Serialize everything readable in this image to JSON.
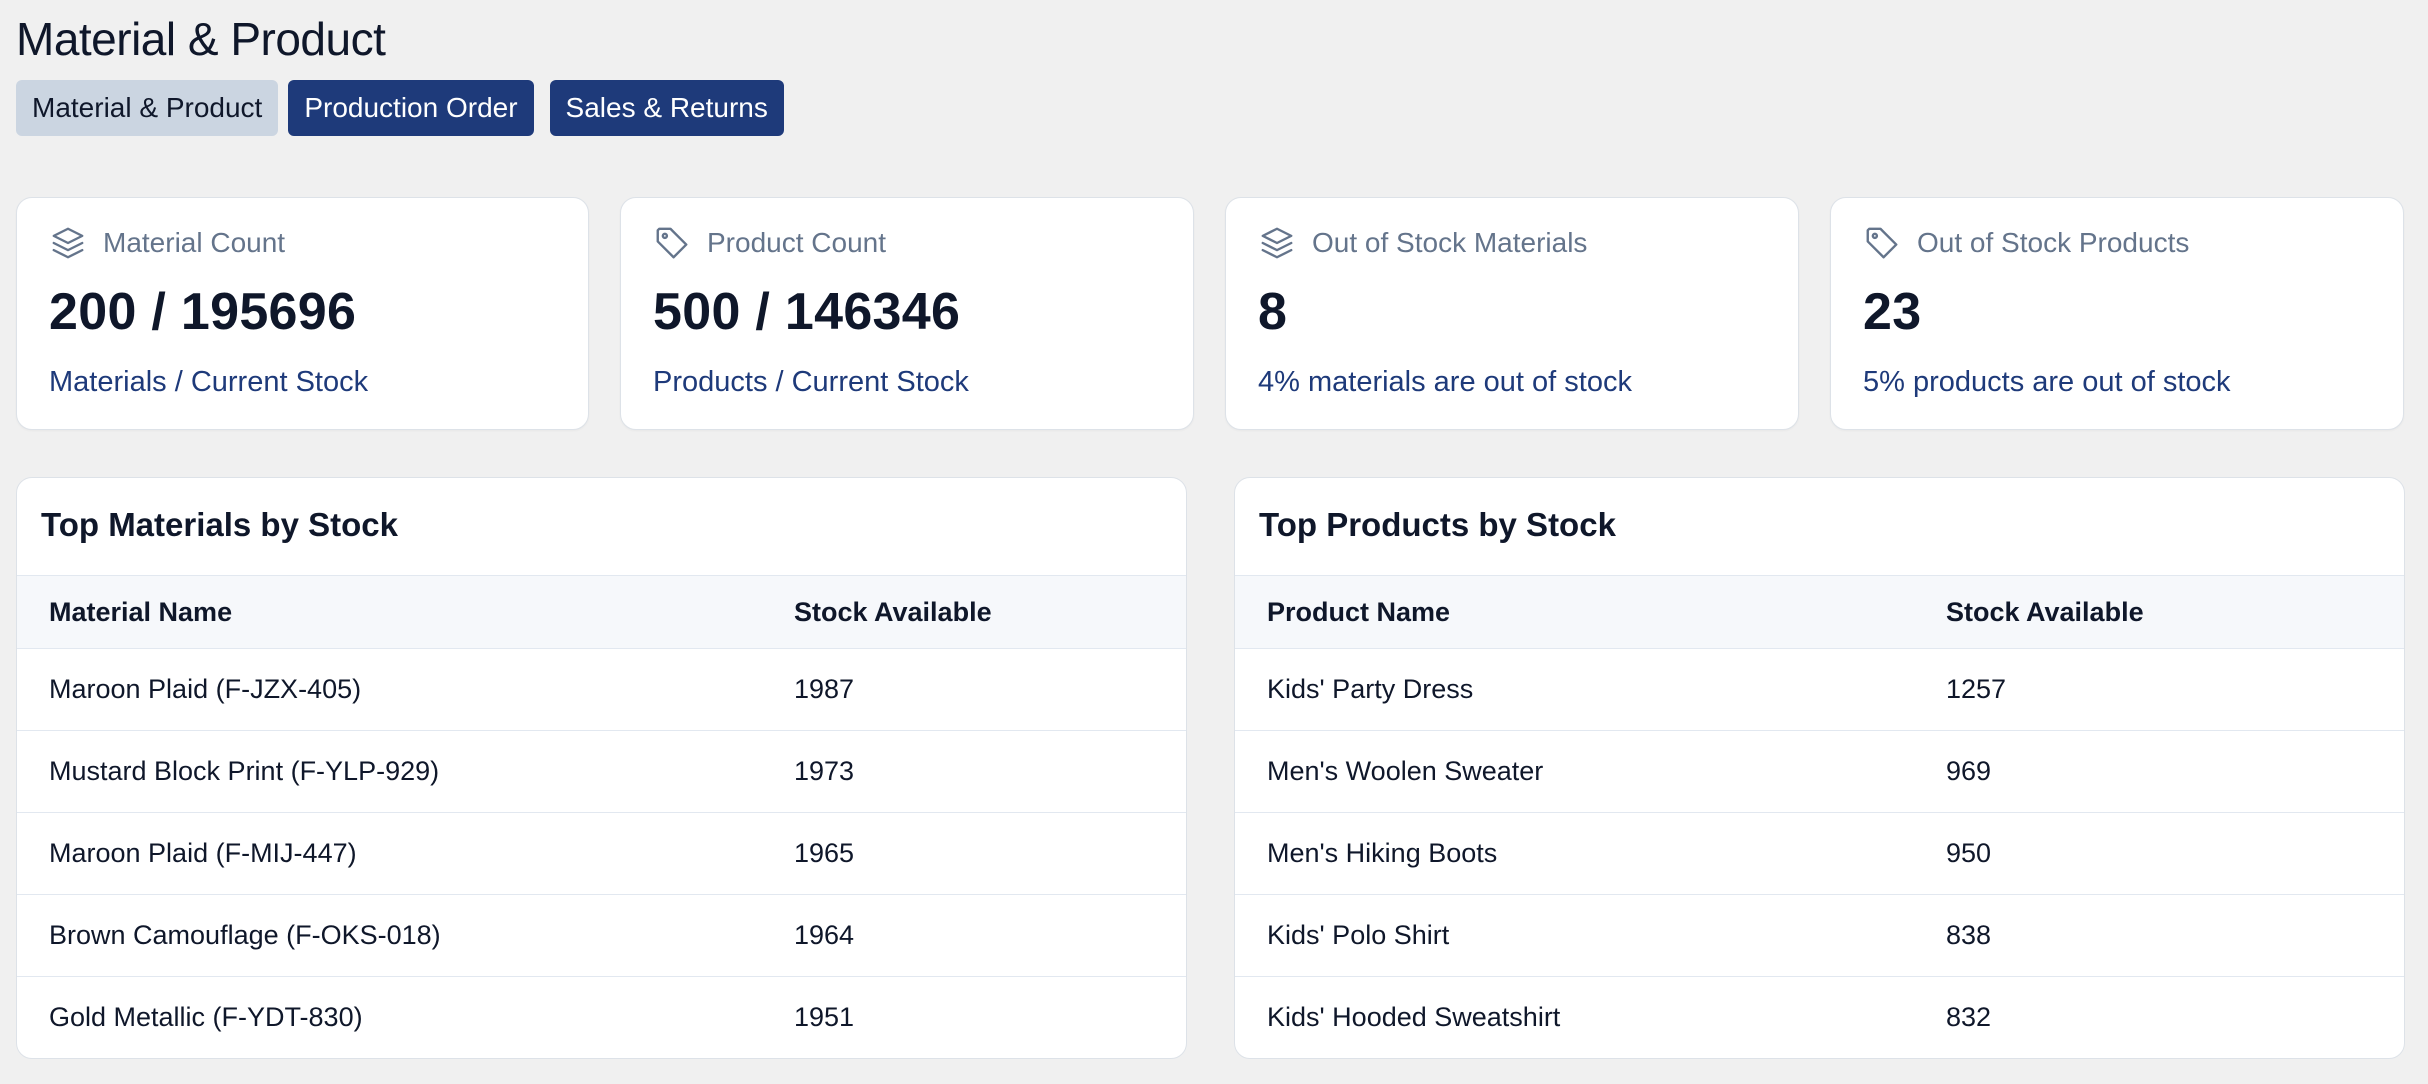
{
  "page": {
    "title": "Material & Product"
  },
  "tabs": [
    {
      "label": "Material & Product",
      "active": false
    },
    {
      "label": "Production Order",
      "active": true
    },
    {
      "label": "Sales & Returns",
      "active": true
    }
  ],
  "stats": [
    {
      "icon": "layers-icon",
      "label": "Material Count",
      "value": "200 / 195696",
      "sub": "Materials / Current Stock"
    },
    {
      "icon": "tag-icon",
      "label": "Product Count",
      "value": "500 / 146346",
      "sub": "Products / Current Stock"
    },
    {
      "icon": "layers-icon",
      "label": "Out of Stock Materials",
      "value": "8",
      "sub": "4% materials are out of stock"
    },
    {
      "icon": "tag-icon",
      "label": "Out of Stock Products",
      "value": "23",
      "sub": "5% products are out of stock"
    }
  ],
  "materials_table": {
    "title": "Top Materials by Stock",
    "columns": [
      "Material Name",
      "Stock Available"
    ],
    "rows": [
      [
        "Maroon Plaid (F-JZX-405)",
        "1987"
      ],
      [
        "Mustard Block Print (F-YLP-929)",
        "1973"
      ],
      [
        "Maroon Plaid (F-MIJ-447)",
        "1965"
      ],
      [
        "Brown Camouflage (F-OKS-018)",
        "1964"
      ],
      [
        "Gold Metallic (F-YDT-830)",
        "1951"
      ]
    ]
  },
  "products_table": {
    "title": "Top Products by Stock",
    "columns": [
      "Product Name",
      "Stock Available"
    ],
    "rows": [
      [
        "Kids' Party Dress",
        "1257"
      ],
      [
        "Men's Woolen Sweater",
        "969"
      ],
      [
        "Men's Hiking Boots",
        "950"
      ],
      [
        "Kids' Polo Shirt",
        "838"
      ],
      [
        "Kids' Hooded Sweatshirt",
        "832"
      ]
    ]
  },
  "colors": {
    "background": "#f0f0f0",
    "accent": "#1e3a7a",
    "inactive_tab": "#cbd5e1",
    "muted_text": "#64748b"
  }
}
